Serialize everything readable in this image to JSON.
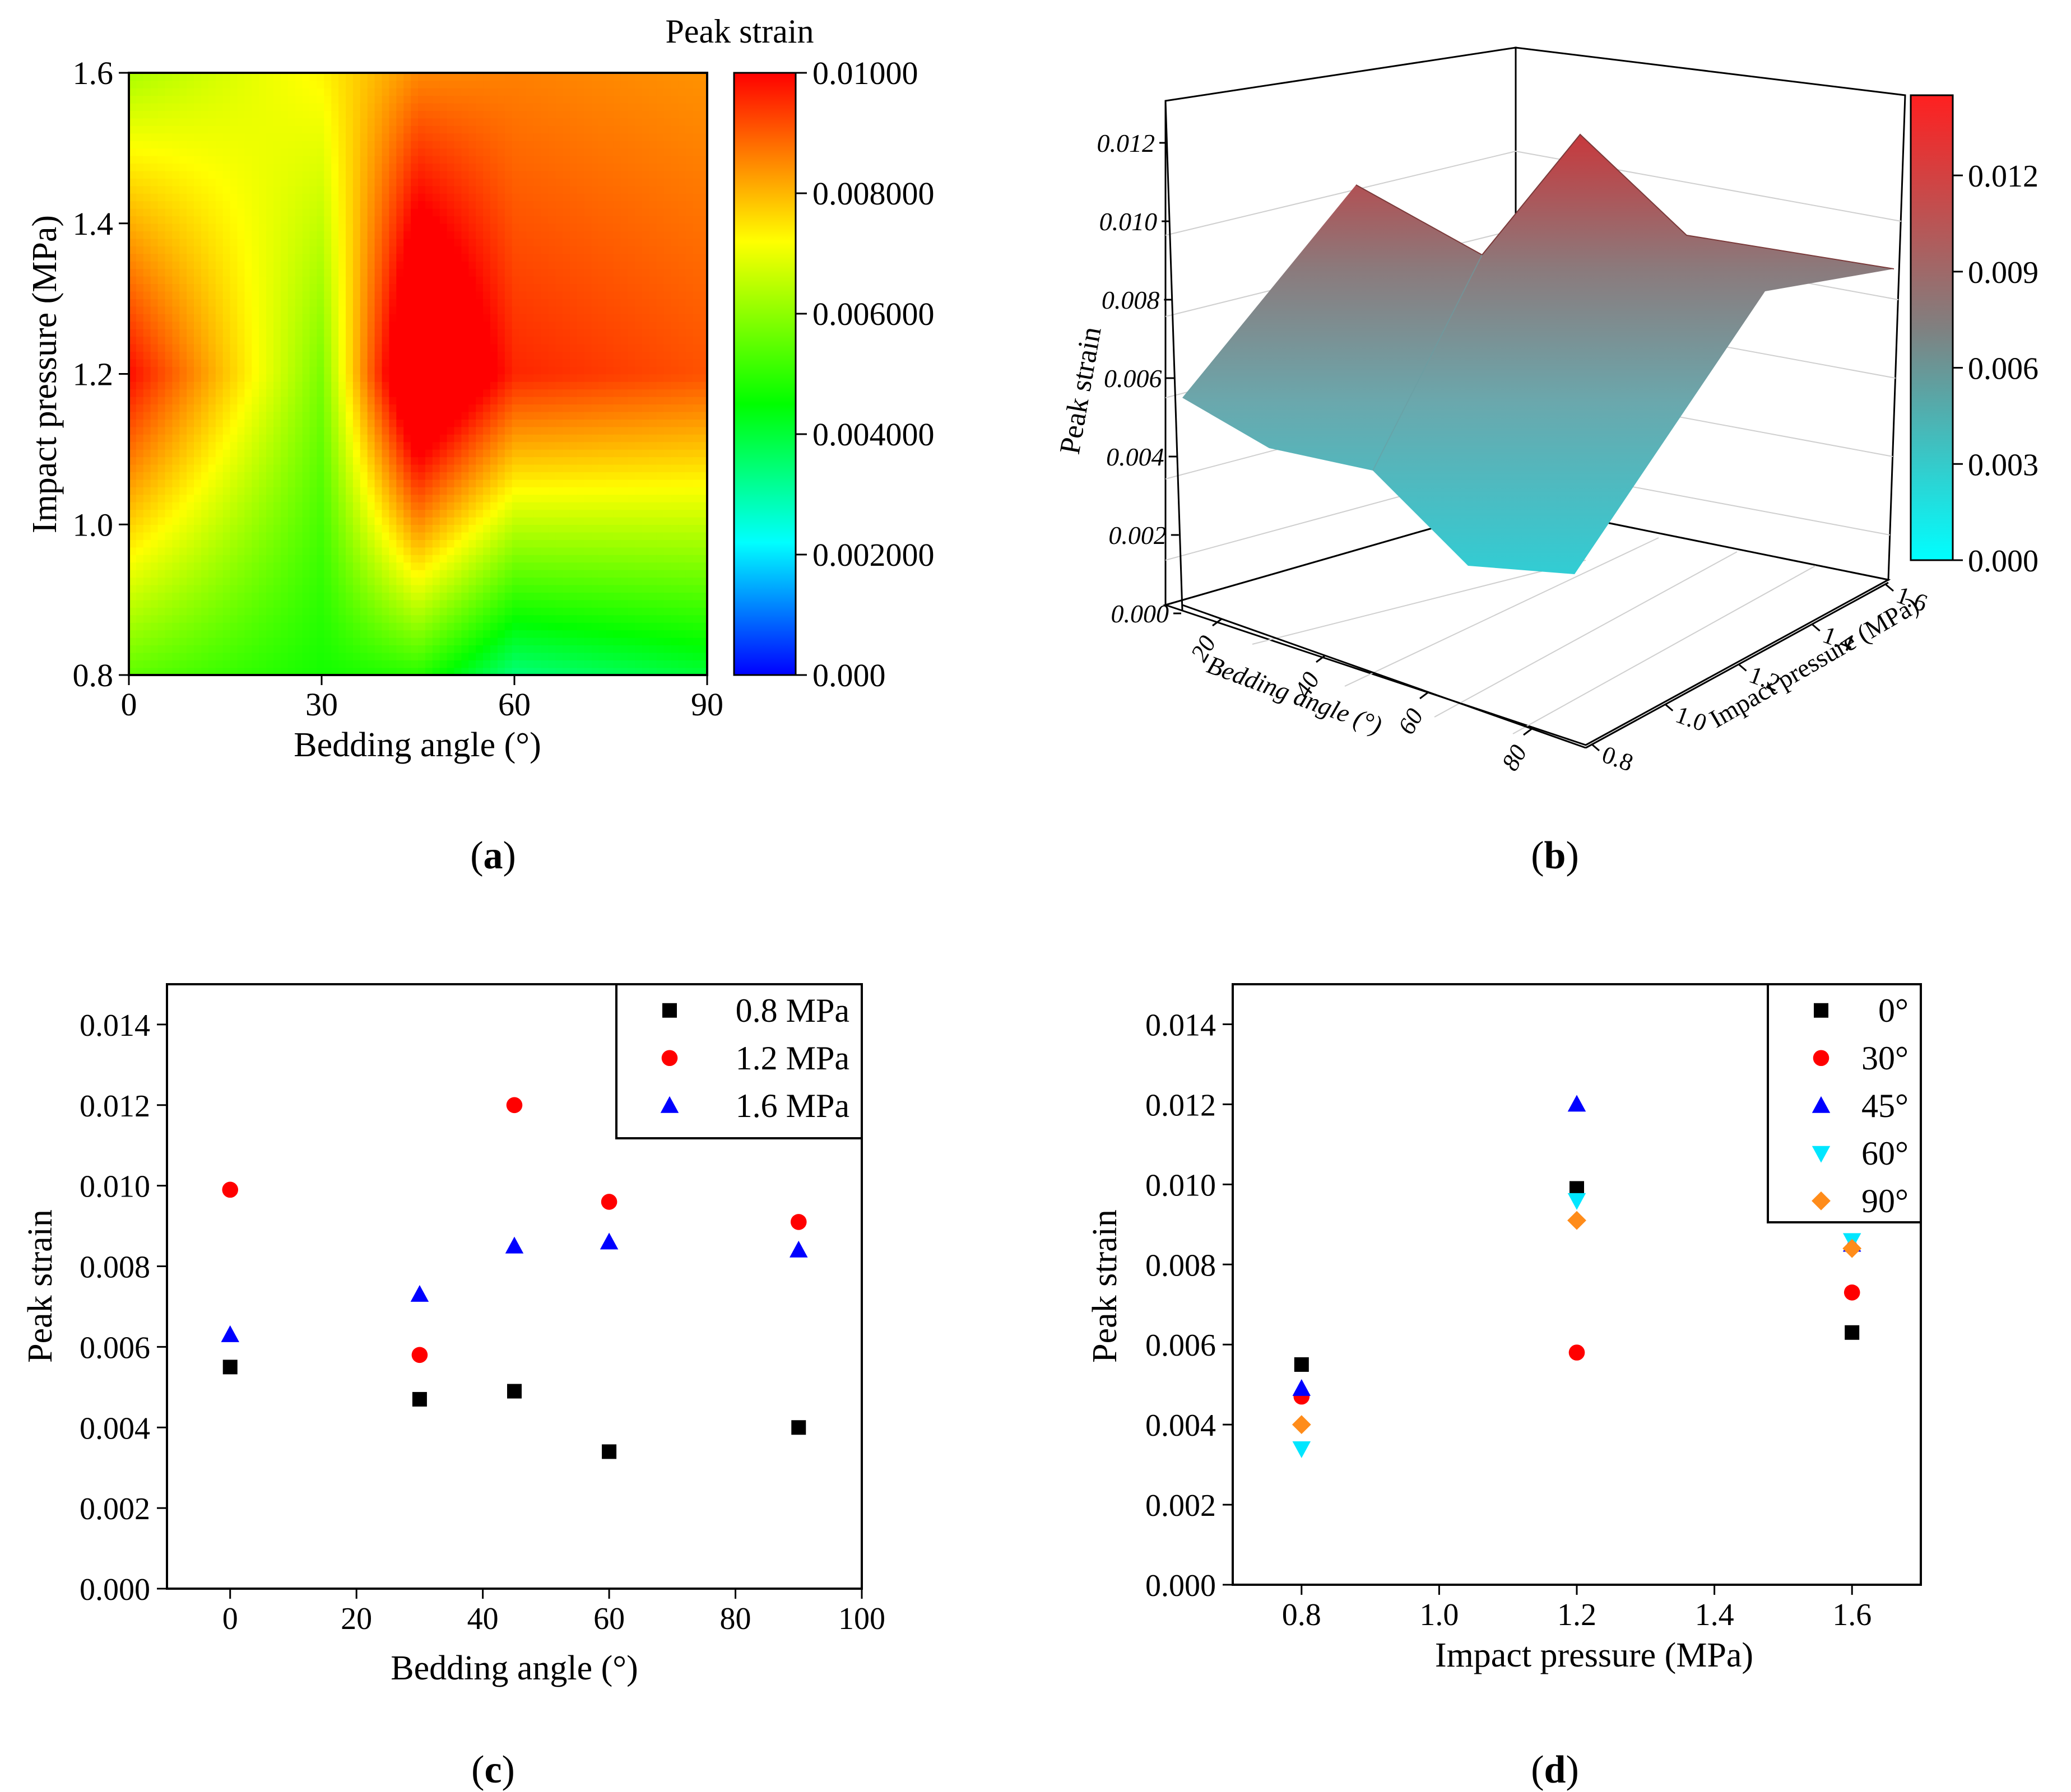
{
  "colors": {
    "black": "#000000",
    "red": "#ff0000",
    "blue": "#0000ff",
    "cyan": "#00e6ff",
    "orange": "#ff8c1a"
  },
  "chart_data": [
    {
      "id": "a",
      "type": "heatmap",
      "panel_label_prefix": "(",
      "panel_label": "a",
      "panel_label_suffix": ")",
      "xlabel": "Bedding angle (°)",
      "ylabel": "Impact pressure (MPa)",
      "xlim": [
        0,
        90
      ],
      "ylim": [
        0.8,
        1.6
      ],
      "x_ticks": [
        "0",
        "30",
        "60",
        "90"
      ],
      "y_ticks": [
        "0.8",
        "1.0",
        "1.2",
        "1.4",
        "1.6"
      ],
      "x": [
        0,
        30,
        45,
        60,
        90
      ],
      "y": [
        0.8,
        1.2,
        1.6
      ],
      "z": [
        [
          0.0055,
          0.0047,
          0.0049,
          0.0034,
          0.004
        ],
        [
          0.0099,
          0.0058,
          0.012,
          0.0096,
          0.0091
        ],
        [
          0.0063,
          0.0073,
          0.0085,
          0.0086,
          0.0084
        ]
      ],
      "colorbar_title": "Peak strain",
      "colorbar_ticks": [
        "0.000",
        "0.002000",
        "0.004000",
        "0.006000",
        "0.008000",
        "0.01000"
      ],
      "colorbar_range": [
        0,
        0.01
      ]
    },
    {
      "id": "b",
      "type": "surface",
      "panel_label_prefix": "(",
      "panel_label": "b",
      "panel_label_suffix": ")",
      "xlabel": "Bedding angle (°)",
      "ylabel": "Impact pressure (MPa)",
      "zlabel": "Peak strain",
      "x_ticks": [
        "20",
        "40",
        "60",
        "80"
      ],
      "y_ticks": [
        "0.8",
        "1.0",
        "1.2",
        "1.4",
        "1.6"
      ],
      "z_ticks": [
        "0.000",
        "0.002",
        "0.004",
        "0.006",
        "0.008",
        "0.010",
        "0.012"
      ],
      "colorbar_ticks": [
        "0.000",
        "0.003",
        "0.006",
        "0.009",
        "0.012"
      ],
      "colorbar_range": [
        0,
        0.0145
      ]
    },
    {
      "id": "c",
      "type": "scatter",
      "panel_label_prefix": "(",
      "panel_label": "c",
      "panel_label_suffix": ")",
      "xlabel": "Bedding angle (°)",
      "ylabel": "Peak strain",
      "xlim": [
        -10,
        100
      ],
      "ylim": [
        0,
        0.015
      ],
      "x_ticks": [
        "0",
        "20",
        "40",
        "60",
        "80",
        "100"
      ],
      "y_ticks": [
        "0.000",
        "0.002",
        "0.004",
        "0.006",
        "0.008",
        "0.010",
        "0.012",
        "0.014"
      ],
      "legend_position": "top-right",
      "series": [
        {
          "name": "0.8 MPa",
          "marker": "square",
          "color": "#000000",
          "x": [
            0,
            30,
            45,
            60,
            90
          ],
          "y": [
            0.0055,
            0.0047,
            0.0049,
            0.0034,
            0.004
          ]
        },
        {
          "name": "1.2 MPa",
          "marker": "circle",
          "color": "#ff0000",
          "x": [
            0,
            30,
            45,
            60,
            90
          ],
          "y": [
            0.0099,
            0.0058,
            0.012,
            0.0096,
            0.0091
          ]
        },
        {
          "name": "1.6 MPa",
          "marker": "triangle-up",
          "color": "#0000ff",
          "x": [
            0,
            30,
            45,
            60,
            90
          ],
          "y": [
            0.0063,
            0.0073,
            0.0085,
            0.0086,
            0.0084
          ]
        }
      ]
    },
    {
      "id": "d",
      "type": "scatter",
      "panel_label_prefix": "(",
      "panel_label": "d",
      "panel_label_suffix": ")",
      "xlabel": "Impact pressure (MPa)",
      "ylabel": "Peak strain",
      "xlim": [
        0.7,
        1.7
      ],
      "ylim": [
        0,
        0.015
      ],
      "x_ticks": [
        "0.8",
        "1.0",
        "1.2",
        "1.4",
        "1.6"
      ],
      "y_ticks": [
        "0.000",
        "0.002",
        "0.004",
        "0.006",
        "0.008",
        "0.010",
        "0.012",
        "0.014"
      ],
      "legend_position": "top-right",
      "series": [
        {
          "name": "0°",
          "marker": "square",
          "color": "#000000",
          "x": [
            0.8,
            1.2,
            1.6
          ],
          "y": [
            0.0055,
            0.0099,
            0.0063
          ]
        },
        {
          "name": "30°",
          "marker": "circle",
          "color": "#ff0000",
          "x": [
            0.8,
            1.2,
            1.6
          ],
          "y": [
            0.0047,
            0.0058,
            0.0073
          ]
        },
        {
          "name": "45°",
          "marker": "triangle-up",
          "color": "#0000ff",
          "x": [
            0.8,
            1.2,
            1.6
          ],
          "y": [
            0.0049,
            0.012,
            0.0085
          ]
        },
        {
          "name": "60°",
          "marker": "triangle-down",
          "color": "#00e6ff",
          "x": [
            0.8,
            1.2,
            1.6
          ],
          "y": [
            0.0034,
            0.0096,
            0.0086
          ]
        },
        {
          "name": "90°",
          "marker": "diamond",
          "color": "#ff8c1a",
          "x": [
            0.8,
            1.2,
            1.6
          ],
          "y": [
            0.004,
            0.0091,
            0.0084
          ]
        }
      ]
    }
  ]
}
